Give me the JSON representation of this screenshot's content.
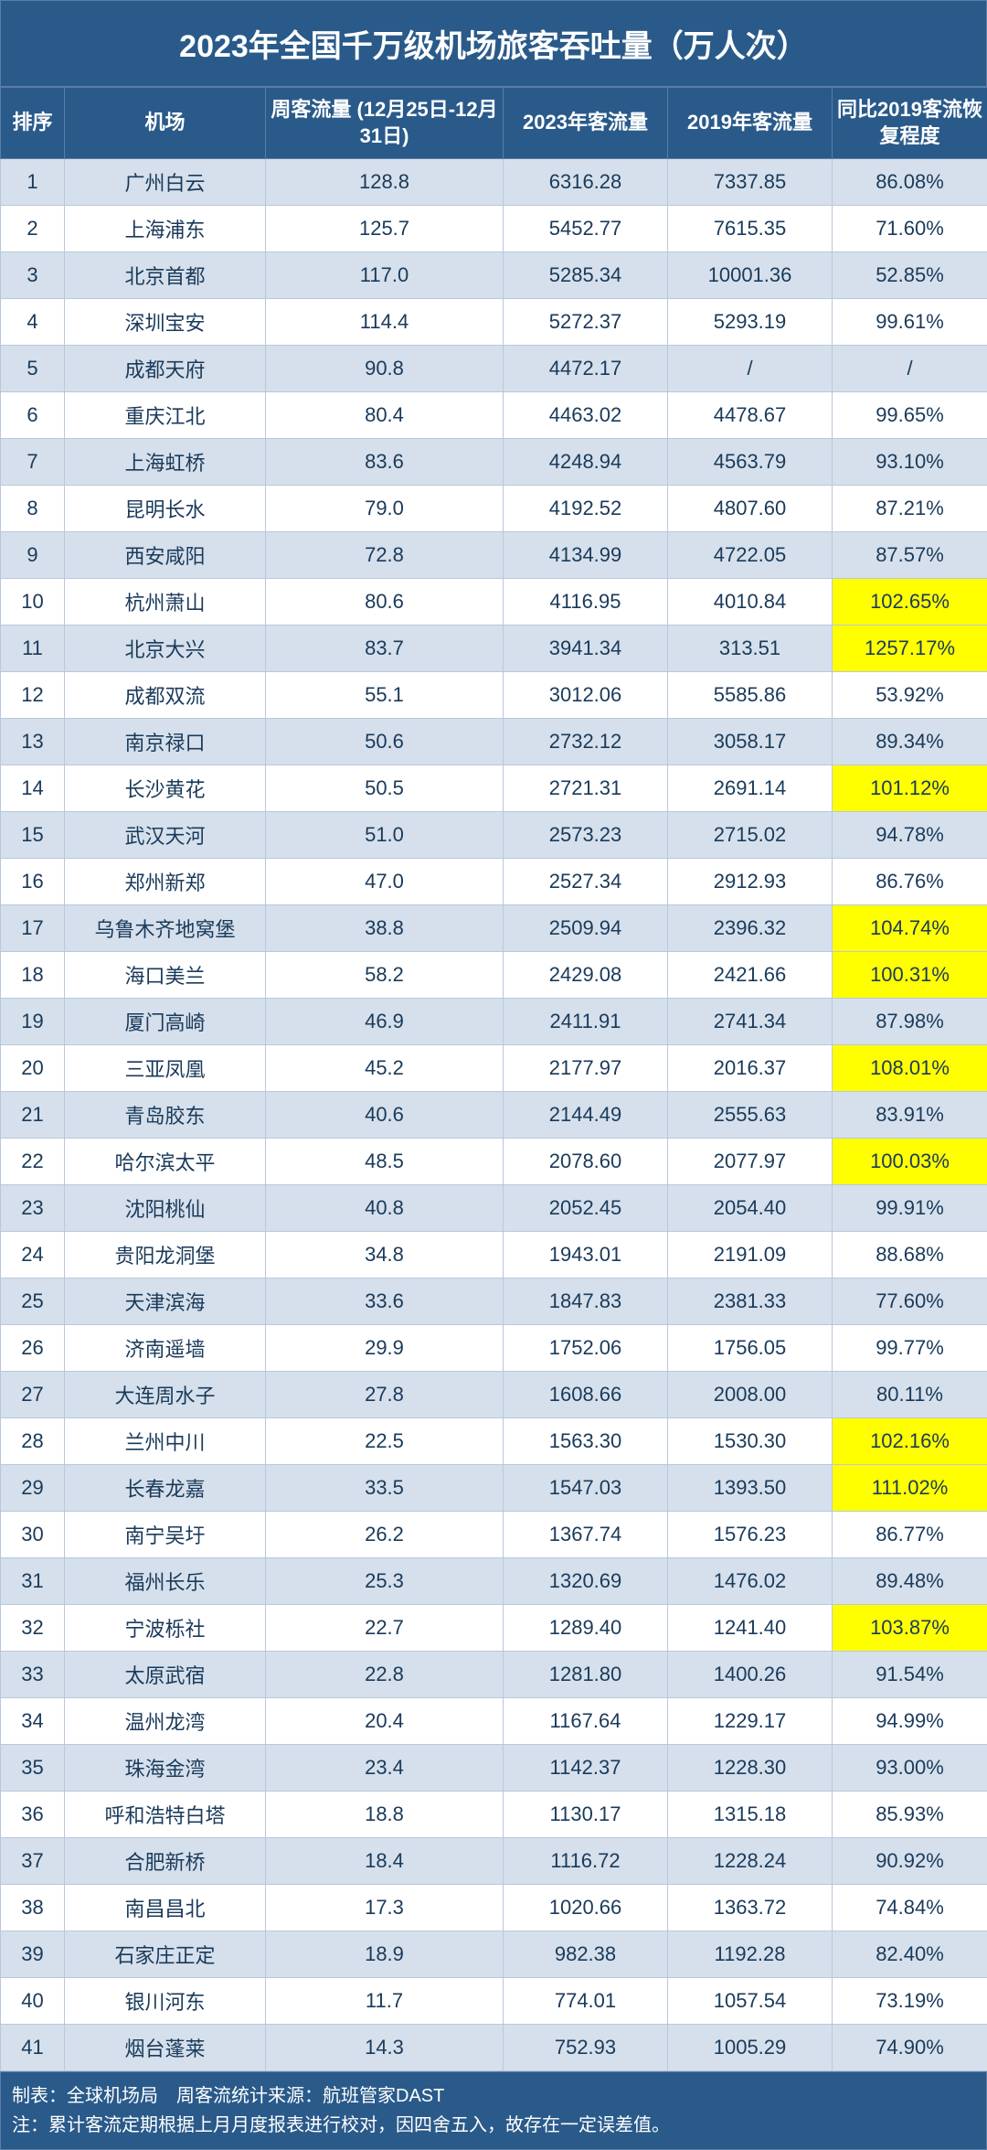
{
  "title": "2023年全国千万级机场旅客吞吐量（万人次）",
  "columns": {
    "rank": "排序",
    "airport": "机场",
    "weekly": "周客流量\n(12月25日-12月31日)",
    "y2023": "2023年客流量",
    "y2019": "2019年客流量",
    "recovery": "同比2019客流恢复程度"
  },
  "colors": {
    "header_bg": "#2a5a8a",
    "header_text": "#ffffff",
    "row_even": "#d5e0ec",
    "row_odd": "#ffffff",
    "highlight": "#ffff00",
    "border": "#b8c8db",
    "text": "#1a3a5a"
  },
  "footer_line1": "制表：全球机场局　周客流统计来源：航班管家DAST",
  "footer_line2": "注：累计客流定期根据上月月度报表进行校对，因四舍五入，故存在一定误差值。",
  "rows": [
    {
      "rank": "1",
      "airport": "广州白云",
      "weekly": "128.8",
      "y2023": "6316.28",
      "y2019": "7337.85",
      "recovery": "86.08%",
      "hl": false
    },
    {
      "rank": "2",
      "airport": "上海浦东",
      "weekly": "125.7",
      "y2023": "5452.77",
      "y2019": "7615.35",
      "recovery": "71.60%",
      "hl": false
    },
    {
      "rank": "3",
      "airport": "北京首都",
      "weekly": "117.0",
      "y2023": "5285.34",
      "y2019": "10001.36",
      "recovery": "52.85%",
      "hl": false
    },
    {
      "rank": "4",
      "airport": "深圳宝安",
      "weekly": "114.4",
      "y2023": "5272.37",
      "y2019": "5293.19",
      "recovery": "99.61%",
      "hl": false
    },
    {
      "rank": "5",
      "airport": "成都天府",
      "weekly": "90.8",
      "y2023": "4472.17",
      "y2019": "/",
      "recovery": "/",
      "hl": false
    },
    {
      "rank": "6",
      "airport": "重庆江北",
      "weekly": "80.4",
      "y2023": "4463.02",
      "y2019": "4478.67",
      "recovery": "99.65%",
      "hl": false
    },
    {
      "rank": "7",
      "airport": "上海虹桥",
      "weekly": "83.6",
      "y2023": "4248.94",
      "y2019": "4563.79",
      "recovery": "93.10%",
      "hl": false
    },
    {
      "rank": "8",
      "airport": "昆明长水",
      "weekly": "79.0",
      "y2023": "4192.52",
      "y2019": "4807.60",
      "recovery": "87.21%",
      "hl": false
    },
    {
      "rank": "9",
      "airport": "西安咸阳",
      "weekly": "72.8",
      "y2023": "4134.99",
      "y2019": "4722.05",
      "recovery": "87.57%",
      "hl": false
    },
    {
      "rank": "10",
      "airport": "杭州萧山",
      "weekly": "80.6",
      "y2023": "4116.95",
      "y2019": "4010.84",
      "recovery": "102.65%",
      "hl": true
    },
    {
      "rank": "11",
      "airport": "北京大兴",
      "weekly": "83.7",
      "y2023": "3941.34",
      "y2019": "313.51",
      "recovery": "1257.17%",
      "hl": true
    },
    {
      "rank": "12",
      "airport": "成都双流",
      "weekly": "55.1",
      "y2023": "3012.06",
      "y2019": "5585.86",
      "recovery": "53.92%",
      "hl": false
    },
    {
      "rank": "13",
      "airport": "南京禄口",
      "weekly": "50.6",
      "y2023": "2732.12",
      "y2019": "3058.17",
      "recovery": "89.34%",
      "hl": false
    },
    {
      "rank": "14",
      "airport": "长沙黄花",
      "weekly": "50.5",
      "y2023": "2721.31",
      "y2019": "2691.14",
      "recovery": "101.12%",
      "hl": true
    },
    {
      "rank": "15",
      "airport": "武汉天河",
      "weekly": "51.0",
      "y2023": "2573.23",
      "y2019": "2715.02",
      "recovery": "94.78%",
      "hl": false
    },
    {
      "rank": "16",
      "airport": "郑州新郑",
      "weekly": "47.0",
      "y2023": "2527.34",
      "y2019": "2912.93",
      "recovery": "86.76%",
      "hl": false
    },
    {
      "rank": "17",
      "airport": "乌鲁木齐地窝堡",
      "weekly": "38.8",
      "y2023": "2509.94",
      "y2019": "2396.32",
      "recovery": "104.74%",
      "hl": true
    },
    {
      "rank": "18",
      "airport": "海口美兰",
      "weekly": "58.2",
      "y2023": "2429.08",
      "y2019": "2421.66",
      "recovery": "100.31%",
      "hl": true
    },
    {
      "rank": "19",
      "airport": "厦门高崎",
      "weekly": "46.9",
      "y2023": "2411.91",
      "y2019": "2741.34",
      "recovery": "87.98%",
      "hl": false
    },
    {
      "rank": "20",
      "airport": "三亚凤凰",
      "weekly": "45.2",
      "y2023": "2177.97",
      "y2019": "2016.37",
      "recovery": "108.01%",
      "hl": true
    },
    {
      "rank": "21",
      "airport": "青岛胶东",
      "weekly": "40.6",
      "y2023": "2144.49",
      "y2019": "2555.63",
      "recovery": "83.91%",
      "hl": false
    },
    {
      "rank": "22",
      "airport": "哈尔滨太平",
      "weekly": "48.5",
      "y2023": "2078.60",
      "y2019": "2077.97",
      "recovery": "100.03%",
      "hl": true
    },
    {
      "rank": "23",
      "airport": "沈阳桃仙",
      "weekly": "40.8",
      "y2023": "2052.45",
      "y2019": "2054.40",
      "recovery": "99.91%",
      "hl": false
    },
    {
      "rank": "24",
      "airport": "贵阳龙洞堡",
      "weekly": "34.8",
      "y2023": "1943.01",
      "y2019": "2191.09",
      "recovery": "88.68%",
      "hl": false
    },
    {
      "rank": "25",
      "airport": "天津滨海",
      "weekly": "33.6",
      "y2023": "1847.83",
      "y2019": "2381.33",
      "recovery": "77.60%",
      "hl": false
    },
    {
      "rank": "26",
      "airport": "济南遥墙",
      "weekly": "29.9",
      "y2023": "1752.06",
      "y2019": "1756.05",
      "recovery": "99.77%",
      "hl": false
    },
    {
      "rank": "27",
      "airport": "大连周水子",
      "weekly": "27.8",
      "y2023": "1608.66",
      "y2019": "2008.00",
      "recovery": "80.11%",
      "hl": false
    },
    {
      "rank": "28",
      "airport": "兰州中川",
      "weekly": "22.5",
      "y2023": "1563.30",
      "y2019": "1530.30",
      "recovery": "102.16%",
      "hl": true
    },
    {
      "rank": "29",
      "airport": "长春龙嘉",
      "weekly": "33.5",
      "y2023": "1547.03",
      "y2019": "1393.50",
      "recovery": "111.02%",
      "hl": true
    },
    {
      "rank": "30",
      "airport": "南宁吴圩",
      "weekly": "26.2",
      "y2023": "1367.74",
      "y2019": "1576.23",
      "recovery": "86.77%",
      "hl": false
    },
    {
      "rank": "31",
      "airport": "福州长乐",
      "weekly": "25.3",
      "y2023": "1320.69",
      "y2019": "1476.02",
      "recovery": "89.48%",
      "hl": false
    },
    {
      "rank": "32",
      "airport": "宁波栎社",
      "weekly": "22.7",
      "y2023": "1289.40",
      "y2019": "1241.40",
      "recovery": "103.87%",
      "hl": true
    },
    {
      "rank": "33",
      "airport": "太原武宿",
      "weekly": "22.8",
      "y2023": "1281.80",
      "y2019": "1400.26",
      "recovery": "91.54%",
      "hl": false
    },
    {
      "rank": "34",
      "airport": "温州龙湾",
      "weekly": "20.4",
      "y2023": "1167.64",
      "y2019": "1229.17",
      "recovery": "94.99%",
      "hl": false
    },
    {
      "rank": "35",
      "airport": "珠海金湾",
      "weekly": "23.4",
      "y2023": "1142.37",
      "y2019": "1228.30",
      "recovery": "93.00%",
      "hl": false
    },
    {
      "rank": "36",
      "airport": "呼和浩特白塔",
      "weekly": "18.8",
      "y2023": "1130.17",
      "y2019": "1315.18",
      "recovery": "85.93%",
      "hl": false
    },
    {
      "rank": "37",
      "airport": "合肥新桥",
      "weekly": "18.4",
      "y2023": "1116.72",
      "y2019": "1228.24",
      "recovery": "90.92%",
      "hl": false
    },
    {
      "rank": "38",
      "airport": "南昌昌北",
      "weekly": "17.3",
      "y2023": "1020.66",
      "y2019": "1363.72",
      "recovery": "74.84%",
      "hl": false
    },
    {
      "rank": "39",
      "airport": "石家庄正定",
      "weekly": "18.9",
      "y2023": "982.38",
      "y2019": "1192.28",
      "recovery": "82.40%",
      "hl": false
    },
    {
      "rank": "40",
      "airport": "银川河东",
      "weekly": "11.7",
      "y2023": "774.01",
      "y2019": "1057.54",
      "recovery": "73.19%",
      "hl": false
    },
    {
      "rank": "41",
      "airport": "烟台蓬莱",
      "weekly": "14.3",
      "y2023": "752.93",
      "y2019": "1005.29",
      "recovery": "74.90%",
      "hl": false
    }
  ]
}
